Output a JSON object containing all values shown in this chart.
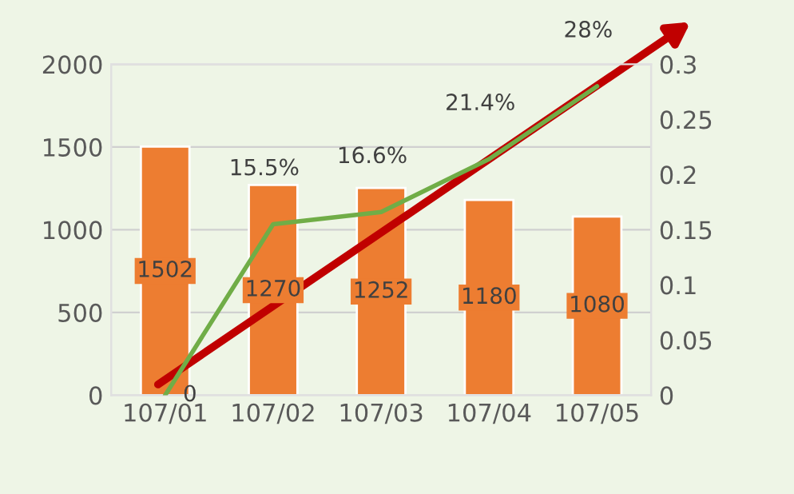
{
  "chart_data": {
    "type": "bar",
    "categories": [
      "107/01",
      "107/02",
      "107/03",
      "107/04",
      "107/05"
    ],
    "series": [
      {
        "type": "bar",
        "color": "#ed7d31",
        "values": [
          1502,
          1270,
          1252,
          1180,
          1080
        ],
        "data_labels": true
      },
      {
        "type": "line",
        "axis": "y2",
        "color": "#70ad47",
        "values": [
          0,
          0.155,
          0.166,
          0.214,
          0.28
        ],
        "value_labels": [
          "0",
          "15.5%",
          "16.6%",
          "21.4%",
          "28%"
        ],
        "marker": "none"
      }
    ],
    "ylim": [
      0,
      2000
    ],
    "yticks": [
      0,
      500,
      1000,
      1500,
      2000
    ],
    "y2lim": [
      0,
      0.3
    ],
    "y2ticks": [
      0,
      0.05,
      0.1,
      0.15,
      0.2,
      0.25,
      0.3
    ],
    "grid": "y",
    "legend": false
  }
}
